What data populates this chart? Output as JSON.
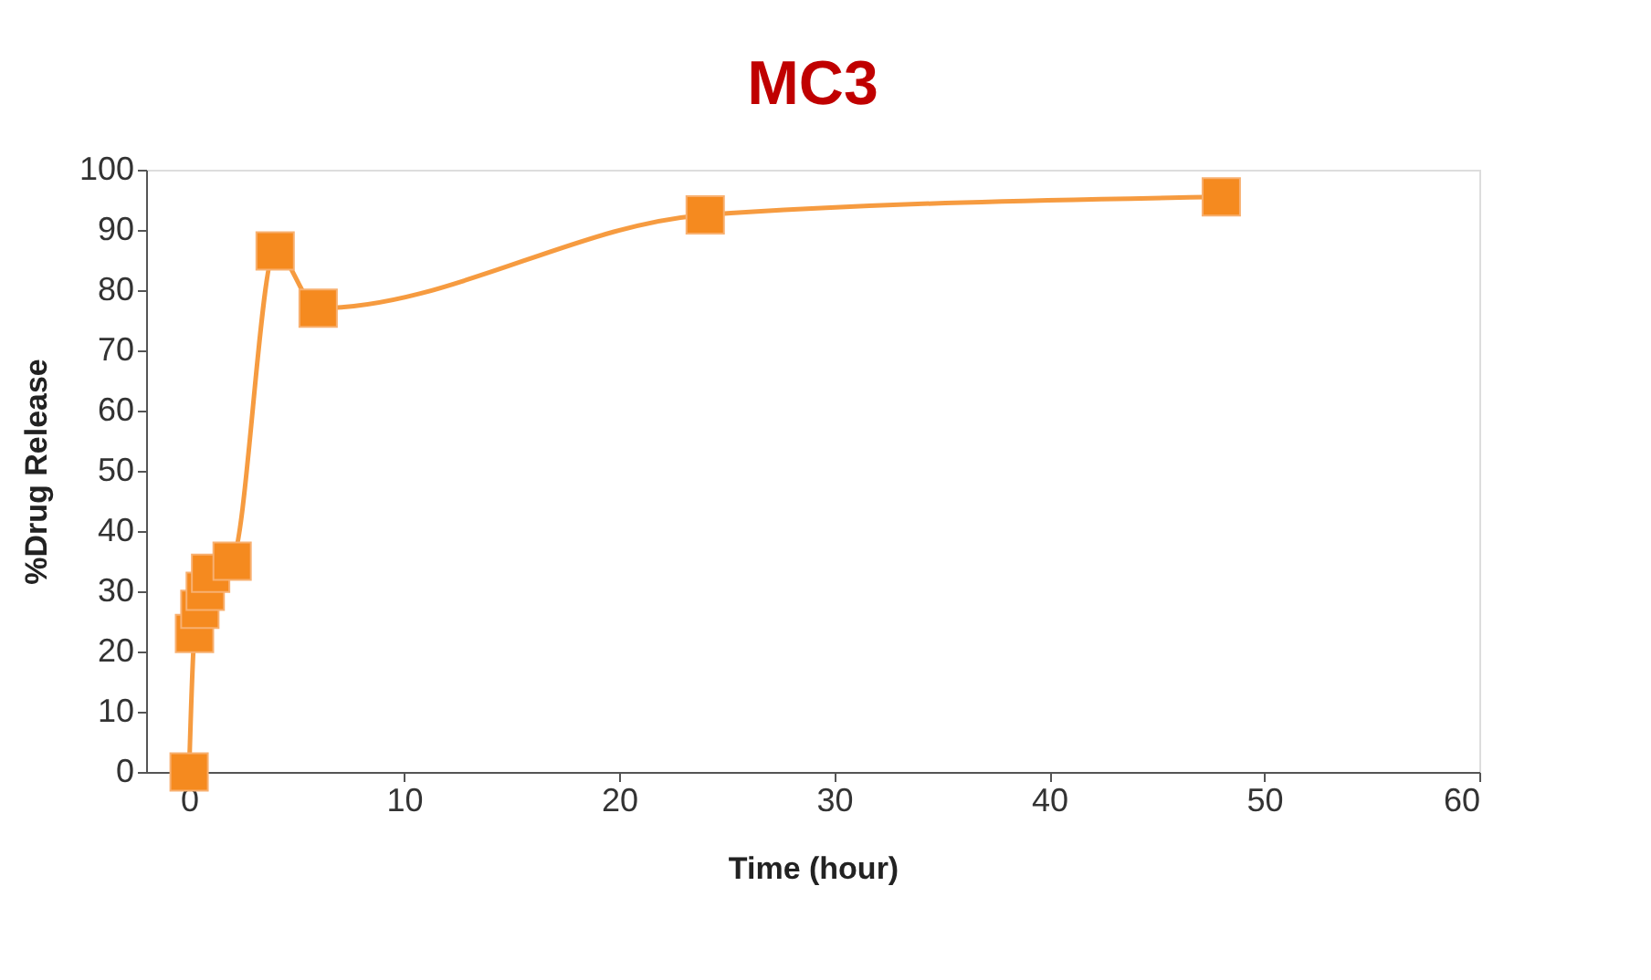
{
  "chart_data": {
    "type": "line",
    "title": "MC3",
    "xlabel": "Time (hour)",
    "ylabel": "%Drug Release",
    "x": [
      0,
      0.25,
      0.5,
      0.75,
      1,
      2,
      4,
      6,
      24,
      48
    ],
    "series": [
      {
        "color": "#f58a1f",
        "values": [
          0,
          23,
          27,
          30,
          33,
          35,
          86.5,
          77,
          92.5,
          95.5
        ]
      }
    ],
    "xlim": [
      -2,
      60
    ],
    "xticks": [
      0,
      10,
      20,
      30,
      40,
      50,
      60
    ],
    "ylim": [
      0,
      100
    ],
    "yticks": [
      0,
      10,
      20,
      30,
      40,
      50,
      60,
      70,
      80,
      90,
      100
    ],
    "grid": false,
    "legend": false,
    "marker": "square",
    "line_style": "solid"
  }
}
